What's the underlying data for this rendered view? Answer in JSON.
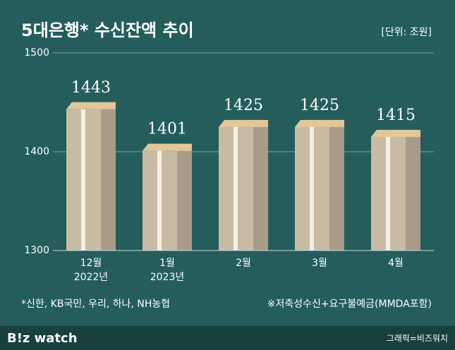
{
  "chart_data": {
    "type": "bar",
    "title": "5대은행* 수신잔액 추이",
    "unit": "[단위: 조원]",
    "categories": [
      "12월",
      "1월",
      "2월",
      "3월",
      "4월"
    ],
    "category_sublabels": [
      "2022년",
      "2023년",
      null,
      null,
      null
    ],
    "values": [
      1443,
      1401,
      1425,
      1425,
      1415
    ],
    "color": "#c9baa3",
    "ylim": [
      1300,
      1500
    ],
    "yticks": [
      1300,
      1400,
      1500
    ],
    "grid": true,
    "footnote_left": "*신한, KB국민, 우리, 하나, NH농협",
    "footnote_right": "※저축성수신+요구불예금(MMDA포함)",
    "logo": "B!z watch",
    "credit": "그래픽=비즈워치"
  }
}
